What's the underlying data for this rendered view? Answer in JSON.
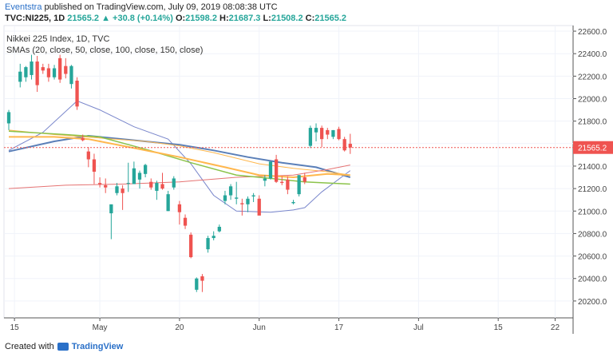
{
  "header": {
    "user": "Eventstra",
    "published": "published on TradingView.com, July 09, 2019 08:08:38 UTC"
  },
  "quote": {
    "symbol": "TVC:NI225, 1D",
    "last": "21565.2",
    "change": "▲ +30.8 (+0.14%)",
    "open_label": "O:",
    "open": "21598.2",
    "high_label": "H:",
    "high": "21687.3",
    "low_label": "L:",
    "low": "21508.2",
    "close_label": "C:",
    "close": "21565.2"
  },
  "footer": {
    "created_with": "Created with",
    "brand": "TradingView"
  },
  "colors": {
    "up": "#26a69a",
    "down": "#ef5350",
    "sma20": "#7986cb",
    "sma50": "#5a7fb8",
    "sma100": "#ffb74d",
    "sma150": "#e57373",
    "sma_green": "#8bc34a",
    "price_line": "#ef5350"
  },
  "chart_data": {
    "type": "candlestick",
    "title": "Nikkei 225 Index, 1D, TVC",
    "subtitle": "SMAs (20, close, 50, close, 100, close, 150, close)",
    "ylim": [
      20050,
      22650
    ],
    "y_ticks": [
      20200,
      20400,
      20600,
      20800,
      21000,
      21200,
      21400,
      21600,
      21800,
      22000,
      22200,
      22400,
      22600
    ],
    "y_tick_labels": [
      "20200.0",
      "20400.0",
      "20600.0",
      "20800.0",
      "21000.0",
      "21200.0",
      "21400.0",
      "21600.0",
      "21800.0",
      "22000.0",
      "22200.0",
      "22400.0",
      "22600.0"
    ],
    "x_tick_labels": [
      "15",
      "May",
      "20",
      "Jun",
      "17",
      "Jul",
      "15",
      "22"
    ],
    "x_tick_index": [
      1,
      16,
      30,
      44,
      58,
      72,
      86,
      96
    ],
    "last_price_label": "21565.2",
    "last_price": 21565.2,
    "candles": [
      {
        "i": 0,
        "o": 21780,
        "h": 21900,
        "l": 21720,
        "c": 21880
      },
      {
        "i": 2,
        "o": 22150,
        "h": 22310,
        "l": 22100,
        "c": 22240
      },
      {
        "i": 3,
        "o": 22190,
        "h": 22290,
        "l": 22150,
        "c": 22280
      },
      {
        "i": 4,
        "o": 22210,
        "h": 22390,
        "l": 22170,
        "c": 22330
      },
      {
        "i": 5,
        "o": 22330,
        "h": 22380,
        "l": 22060,
        "c": 22120
      },
      {
        "i": 6,
        "o": 22280,
        "h": 22310,
        "l": 22220,
        "c": 22250
      },
      {
        "i": 7,
        "o": 22270,
        "h": 22310,
        "l": 22150,
        "c": 22190
      },
      {
        "i": 8,
        "o": 22190,
        "h": 22300,
        "l": 22170,
        "c": 22270
      },
      {
        "i": 9,
        "o": 22360,
        "h": 22390,
        "l": 22140,
        "c": 22170
      },
      {
        "i": 10,
        "o": 22290,
        "h": 22360,
        "l": 22180,
        "c": 22220
      },
      {
        "i": 11,
        "o": 22130,
        "h": 22300,
        "l": 22090,
        "c": 22290
      },
      {
        "i": 12,
        "o": 22160,
        "h": 22190,
        "l": 21900,
        "c": 21930
      },
      {
        "i": 13,
        "o": 21650,
        "h": 21680,
        "l": 21620,
        "c": 21630
      },
      {
        "i": 14,
        "o": 21530,
        "h": 21570,
        "l": 21390,
        "c": 21460
      },
      {
        "i": 15,
        "o": 21460,
        "h": 21510,
        "l": 21240,
        "c": 21350
      },
      {
        "i": 16,
        "o": 21250,
        "h": 21300,
        "l": 21210,
        "c": 21240
      },
      {
        "i": 17,
        "o": 21230,
        "h": 21290,
        "l": 21160,
        "c": 21210
      },
      {
        "i": 18,
        "o": 20980,
        "h": 21040,
        "l": 20750,
        "c": 21060
      },
      {
        "i": 19,
        "o": 21160,
        "h": 21250,
        "l": 21140,
        "c": 21220
      },
      {
        "i": 20,
        "o": 21200,
        "h": 21230,
        "l": 21010,
        "c": 21160
      },
      {
        "i": 21,
        "o": 21250,
        "h": 21430,
        "l": 21170,
        "c": 21250
      },
      {
        "i": 22,
        "o": 21240,
        "h": 21440,
        "l": 21240,
        "c": 21380
      },
      {
        "i": 23,
        "o": 21280,
        "h": 21360,
        "l": 21200,
        "c": 21340
      },
      {
        "i": 24,
        "o": 21330,
        "h": 21420,
        "l": 21300,
        "c": 21410
      },
      {
        "i": 25,
        "o": 21260,
        "h": 21290,
        "l": 21190,
        "c": 21210
      },
      {
        "i": 26,
        "o": 21180,
        "h": 21270,
        "l": 21100,
        "c": 21250
      },
      {
        "i": 27,
        "o": 21240,
        "h": 21340,
        "l": 21190,
        "c": 21200
      },
      {
        "i": 28,
        "o": 21000,
        "h": 21180,
        "l": 21000,
        "c": 21150
      },
      {
        "i": 29,
        "o": 21210,
        "h": 21310,
        "l": 21190,
        "c": 21290
      },
      {
        "i": 30,
        "o": 21060,
        "h": 21090,
        "l": 20880,
        "c": 20990
      },
      {
        "i": 31,
        "o": 20940,
        "h": 20970,
        "l": 20840,
        "c": 20870
      },
      {
        "i": 32,
        "o": 20790,
        "h": 20810,
        "l": 20580,
        "c": 20590
      },
      {
        "i": 33,
        "o": 20300,
        "h": 20410,
        "l": 20280,
        "c": 20400
      },
      {
        "i": 34,
        "o": 20420,
        "h": 20440,
        "l": 20280,
        "c": 20380
      },
      {
        "i": 35,
        "o": 20660,
        "h": 20780,
        "l": 20630,
        "c": 20760
      },
      {
        "i": 36,
        "o": 20760,
        "h": 20820,
        "l": 20740,
        "c": 20780
      },
      {
        "i": 37,
        "o": 20820,
        "h": 20880,
        "l": 20810,
        "c": 20860
      },
      {
        "i": 38,
        "o": 21090,
        "h": 21180,
        "l": 21060,
        "c": 21140
      },
      {
        "i": 39,
        "o": 21140,
        "h": 21240,
        "l": 21100,
        "c": 21220
      },
      {
        "i": 40,
        "o": 21110,
        "h": 21260,
        "l": 21060,
        "c": 21120
      },
      {
        "i": 41,
        "o": 21070,
        "h": 21110,
        "l": 20960,
        "c": 21060
      },
      {
        "i": 42,
        "o": 21060,
        "h": 21130,
        "l": 20990,
        "c": 21110
      },
      {
        "i": 43,
        "o": 21130,
        "h": 21160,
        "l": 21080,
        "c": 21140
      },
      {
        "i": 44,
        "o": 21110,
        "h": 21140,
        "l": 20970,
        "c": 20960
      },
      {
        "i": 45,
        "o": 21270,
        "h": 21320,
        "l": 21220,
        "c": 21290
      },
      {
        "i": 46,
        "o": 21290,
        "h": 21430,
        "l": 21280,
        "c": 21440
      },
      {
        "i": 47,
        "o": 21460,
        "h": 21500,
        "l": 21250,
        "c": 21260
      },
      {
        "i": 48,
        "o": 21260,
        "h": 21310,
        "l": 21230,
        "c": 21250
      },
      {
        "i": 49,
        "o": 21280,
        "h": 21310,
        "l": 21150,
        "c": 21190
      },
      {
        "i": 50,
        "o": 21070,
        "h": 21100,
        "l": 21060,
        "c": 21080
      },
      {
        "i": 51,
        "o": 21150,
        "h": 21320,
        "l": 21130,
        "c": 21320
      },
      {
        "i": 52,
        "o": 21300,
        "h": 21340,
        "l": 21240,
        "c": 21260
      },
      {
        "i": 53,
        "o": 21580,
        "h": 21760,
        "l": 21560,
        "c": 21740
      },
      {
        "i": 54,
        "o": 21700,
        "h": 21780,
        "l": 21620,
        "c": 21740
      },
      {
        "i": 55,
        "o": 21740,
        "h": 21760,
        "l": 21570,
        "c": 21640
      },
      {
        "i": 56,
        "o": 21720,
        "h": 21740,
        "l": 21640,
        "c": 21680
      },
      {
        "i": 57,
        "o": 21660,
        "h": 21720,
        "l": 21640,
        "c": 21720
      },
      {
        "i": 58,
        "o": 21730,
        "h": 21750,
        "l": 21630,
        "c": 21640
      },
      {
        "i": 59,
        "o": 21640,
        "h": 21660,
        "l": 21530,
        "c": 21540
      },
      {
        "i": 60,
        "o": 21598.2,
        "h": 21687.3,
        "l": 21508.2,
        "c": 21565.2
      }
    ],
    "series": [
      {
        "key": "sma20",
        "values": [
          [
            0,
            21540
          ],
          [
            6,
            21700
          ],
          [
            12,
            21980
          ],
          [
            16,
            21900
          ],
          [
            22,
            21750
          ],
          [
            28,
            21640
          ],
          [
            32,
            21420
          ],
          [
            36,
            21140
          ],
          [
            40,
            21000
          ],
          [
            46,
            20990
          ],
          [
            50,
            21010
          ],
          [
            52,
            21030
          ],
          [
            55,
            21170
          ],
          [
            60,
            21360
          ]
        ]
      },
      {
        "key": "sma50",
        "values": [
          [
            0,
            21530
          ],
          [
            8,
            21620
          ],
          [
            14,
            21670
          ],
          [
            22,
            21630
          ],
          [
            30,
            21590
          ],
          [
            36,
            21540
          ],
          [
            42,
            21480
          ],
          [
            48,
            21430
          ],
          [
            54,
            21390
          ],
          [
            60,
            21300
          ]
        ]
      },
      {
        "key": "sma100",
        "values": [
          [
            0,
            21720
          ],
          [
            8,
            21680
          ],
          [
            16,
            21650
          ],
          [
            24,
            21620
          ],
          [
            30,
            21580
          ],
          [
            36,
            21520
          ],
          [
            44,
            21420
          ],
          [
            50,
            21380
          ],
          [
            56,
            21350
          ],
          [
            60,
            21320
          ]
        ]
      },
      {
        "key": "sma150",
        "values": [
          [
            0,
            21200
          ],
          [
            10,
            21230
          ],
          [
            20,
            21240
          ],
          [
            30,
            21260
          ],
          [
            40,
            21300
          ],
          [
            50,
            21320
          ],
          [
            56,
            21370
          ],
          [
            60,
            21410
          ]
        ]
      },
      {
        "key": "sma_green",
        "values": [
          [
            0,
            21710
          ],
          [
            10,
            21680
          ],
          [
            16,
            21660
          ],
          [
            24,
            21550
          ],
          [
            32,
            21430
          ],
          [
            40,
            21320
          ],
          [
            46,
            21290
          ],
          [
            52,
            21260
          ],
          [
            60,
            21240
          ]
        ]
      },
      {
        "key": "sma100b",
        "values": [
          [
            0,
            21660
          ],
          [
            8,
            21660
          ],
          [
            14,
            21640
          ],
          [
            22,
            21560
          ],
          [
            30,
            21480
          ],
          [
            38,
            21390
          ],
          [
            44,
            21320
          ],
          [
            50,
            21300
          ],
          [
            56,
            21330
          ],
          [
            60,
            21320
          ]
        ]
      }
    ]
  }
}
